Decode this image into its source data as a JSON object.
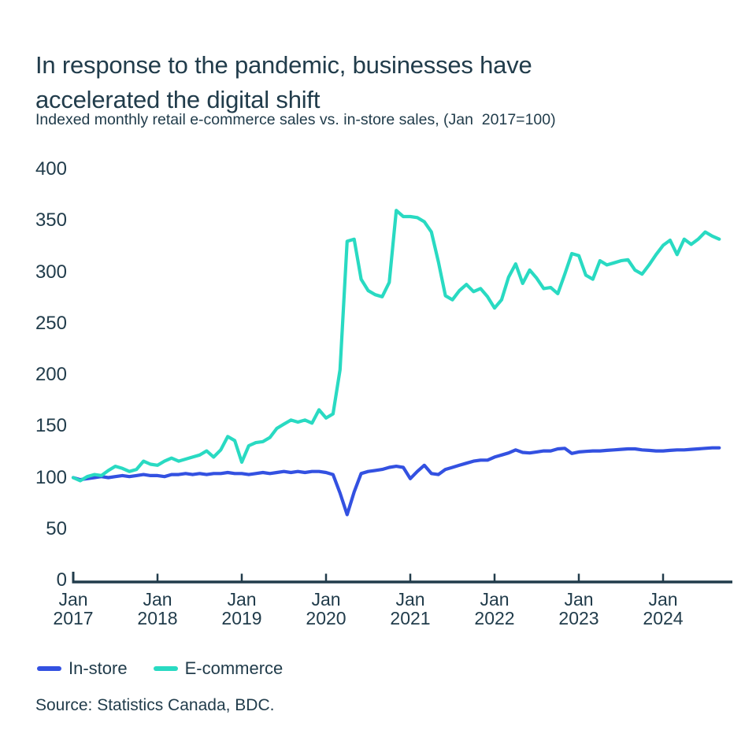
{
  "header": {
    "title": "In response to the pandemic, businesses have accelerated the digital shift",
    "subtitle": "Indexed monthly retail e-commerce sales vs. in-store sales, (Jan  2017=100)"
  },
  "chart_data": {
    "type": "line",
    "title": "In response to the pandemic, businesses have accelerated the digital shift",
    "subtitle": "Indexed monthly retail e-commerce sales vs. in-store sales, (Jan  2017=100)",
    "x_unit": "month",
    "x_start": "Jan 2017",
    "x_end": "Sep 2024",
    "baseline_note": "Jan 2017=100",
    "ylim": [
      0,
      400
    ],
    "y_ticks": [
      400,
      350,
      300,
      250,
      200,
      150,
      100,
      50,
      0
    ],
    "x_tick_labels": [
      {
        "month": "Jan",
        "year": "2017"
      },
      {
        "month": "Jan",
        "year": "2018"
      },
      {
        "month": "Jan",
        "year": "2019"
      },
      {
        "month": "Jan",
        "year": "2020"
      },
      {
        "month": "Jan",
        "year": "2021"
      },
      {
        "month": "Jan",
        "year": "2022"
      },
      {
        "month": "Jan",
        "year": "2023"
      },
      {
        "month": "Jan",
        "year": "2024"
      }
    ],
    "grid": false,
    "legend_position": "bottom-left",
    "axis_color": "#213c4b",
    "series": [
      {
        "name": "In-store",
        "color": "#3351e1",
        "values": [
          100,
          98,
          99,
          100,
          101,
          100,
          101,
          102,
          101,
          102,
          103,
          102,
          102,
          101,
          103,
          103,
          104,
          103,
          104,
          103,
          104,
          104,
          105,
          104,
          104,
          103,
          104,
          105,
          104,
          105,
          106,
          105,
          106,
          105,
          106,
          106,
          105,
          103,
          85,
          64,
          86,
          104,
          106,
          107,
          108,
          110,
          111,
          110,
          99,
          106,
          112,
          104,
          103,
          108,
          110,
          112,
          114,
          116,
          117,
          117,
          120,
          122,
          124,
          127,
          124.5,
          124,
          125,
          126,
          126,
          128,
          128.5,
          123.5,
          125,
          125.5,
          126,
          126,
          126.5,
          127,
          127.5,
          128,
          128,
          127,
          126.5,
          126,
          126,
          126.5,
          127,
          127,
          127.5,
          128,
          128.5,
          129,
          129
        ]
      },
      {
        "name": "E-commerce",
        "color": "#29dac2",
        "values": [
          100,
          97,
          101,
          103,
          102,
          107,
          111,
          109,
          106,
          108,
          116,
          113,
          112,
          116,
          119,
          116,
          118,
          120,
          122,
          126,
          120,
          127,
          140,
          136,
          115,
          131,
          134,
          135,
          139,
          148,
          152,
          156,
          154,
          156,
          153,
          166,
          158,
          162,
          205,
          330,
          332,
          293,
          282,
          278,
          276,
          290,
          360,
          354,
          354,
          353,
          349,
          339,
          310,
          277,
          273,
          282,
          288,
          281,
          284,
          276,
          265,
          273,
          295,
          308,
          289,
          302,
          294,
          284,
          285,
          279,
          298,
          318,
          316,
          297,
          293,
          311,
          307,
          309,
          311,
          312,
          302,
          298,
          307,
          317,
          326,
          331,
          317,
          332,
          327,
          332,
          339,
          335,
          332
        ]
      }
    ]
  },
  "legend": {
    "items": [
      {
        "label": "In-store",
        "color": "#3351e1"
      },
      {
        "label": "E-commerce",
        "color": "#29dac2"
      }
    ]
  },
  "source": {
    "text": "Source: Statistics Canada, BDC."
  }
}
